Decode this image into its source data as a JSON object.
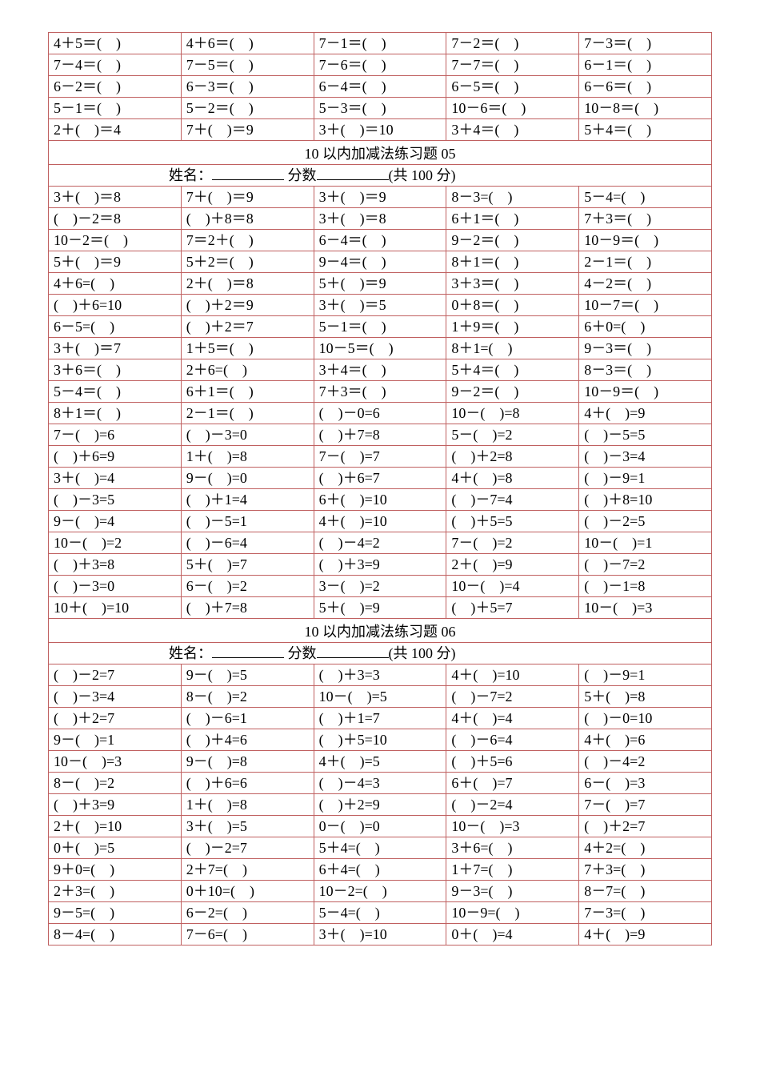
{
  "table": {
    "border_color": "#c06060",
    "columns": 5,
    "column_width_pct": 20
  },
  "block_a": {
    "rows": [
      [
        "4＋5＝(　)",
        "4＋6＝(　)",
        "7－1＝(　)",
        "7－2＝(　)",
        "7－3＝(　)"
      ],
      [
        "7－4＝(　)",
        "7－5＝(　)",
        "7－6＝(　)",
        "7－7＝(　)",
        "6－1＝(　)"
      ],
      [
        "6－2＝(　)",
        "6－3＝(　)",
        "6－4＝(　)",
        "6－5＝(　)",
        "6－6＝(　)"
      ],
      [
        "5－1＝(　)",
        "5－2＝(　)",
        "5－3＝(　)",
        "10－6＝(　)",
        "10－8＝(　)"
      ],
      [
        "2＋(　)＝4",
        "7＋(　)＝9",
        "3＋(　)＝10",
        "3＋4＝(　)",
        "5＋4＝(　)"
      ]
    ]
  },
  "set05": {
    "title": "10 以内加减法练习题 05",
    "label_name": "姓名：",
    "label_score": " 分数",
    "label_total": "(共 100 分)",
    "rows": [
      [
        "3＋(　)＝8",
        "7＋(　)＝9",
        "3＋(　)＝9",
        "8－3=(　)",
        "5－4=(　)"
      ],
      [
        "(　)－2＝8",
        "(　)＋8＝8",
        "3＋(　)＝8",
        "6＋1＝(　)",
        "7＋3＝(　)"
      ],
      [
        "10－2＝(　)",
        "7＝2＋(　)",
        "6－4＝(　)",
        "9－2＝(　)",
        "10－9＝(　)"
      ],
      [
        "5＋(　)＝9",
        "5＋2＝(　)",
        "9－4＝(　)",
        "8＋1＝(　)",
        "2－1＝(　)"
      ],
      [
        "4＋6=(　)",
        "2＋(　)＝8",
        "5＋(　)＝9",
        "3＋3＝(　)",
        "4－2＝(　)"
      ],
      [
        "(　)＋6=10",
        "(　)＋2＝9",
        "3＋(　)＝5",
        "0＋8＝(　)",
        "10－7＝(　)"
      ],
      [
        "6－5=(　)",
        "(　)＋2＝7",
        "5－1＝(　)",
        "1＋9＝(　)",
        "6＋0=(　)"
      ],
      [
        "3＋(　)＝7",
        "1＋5＝(　)",
        "10－5＝(　)",
        "8＋1=(　)",
        "9－3＝(　)"
      ],
      [
        "3＋6＝(　)",
        "2＋6=(　)",
        "3＋4＝(　)",
        "5＋4＝(　)",
        "8－3＝(　)"
      ],
      [
        "5－4＝(　)",
        "6＋1＝(　)",
        "7＋3＝(　)",
        "9－2＝(　)",
        "10－9＝(　)"
      ],
      [
        "8＋1＝(　)",
        "2－1＝(　)",
        "(　)－0=6",
        "10－(　)=8",
        "4＋(　)=9"
      ],
      [
        "7－(　)=6",
        "(　)－3=0",
        "(　)＋7=8",
        "5－(　)=2",
        "(　)－5=5"
      ],
      [
        "(　)＋6=9",
        "1＋(　)=8",
        "7－(　)=7",
        "(　)＋2=8",
        "(　)－3=4"
      ],
      [
        "3＋(　)=4",
        "9－(　)=0",
        "(　)＋6=7",
        "4＋(　)=8",
        "(　)－9=1"
      ],
      [
        "(　)－3=5",
        "(　)＋1=4",
        "6＋(　)=10",
        "(　)－7=4",
        "(　)＋8=10"
      ],
      [
        "9－(　)=4",
        "(　)－5=1",
        "4＋(　)=10",
        "(　)＋5=5",
        "(　)－2=5"
      ],
      [
        "10－(　)=2",
        "(　)－6=4",
        "(　)－4=2",
        "7－(　)=2",
        "10－(　)=1"
      ],
      [
        "(　)＋3=8",
        "5＋(　)=7",
        "(　)＋3=9",
        "2＋(　)=9",
        "(　)－7=2"
      ],
      [
        "(　)－3=0",
        "6－(　)=2",
        "3－(　)=2",
        "10－(　)=4",
        "(　)－1=8"
      ],
      [
        "10＋(　)=10",
        "(　)＋7=8",
        "5＋(　)=9",
        "(　)＋5=7",
        "10－(　)=3"
      ]
    ]
  },
  "set06": {
    "title": "10 以内加减法练习题 06",
    "label_name": "姓名：",
    "label_score": " 分数",
    "label_total": "(共 100 分)",
    "rows": [
      [
        "(　)－2=7",
        "9－(　)=5",
        "(　)＋3=3",
        "4＋(　)=10",
        "(　)－9=1"
      ],
      [
        "(　)－3=4",
        "8－(　)=2",
        "10－(　)=5",
        "(　)－7=2",
        "5＋(　)=8"
      ],
      [
        "(　)＋2=7",
        "(　)－6=1",
        "(　)＋1=7",
        "4＋(　)=4",
        "(　)－0=10"
      ],
      [
        "9－(　)=1",
        "(　)＋4=6",
        "(　)＋5=10",
        "(　)－6=4",
        "4＋(　)=6"
      ],
      [
        "10－(　)=3",
        "9－(　)=8",
        "4＋(　)=5",
        "(　)＋5=6",
        "(　)－4=2"
      ],
      [
        "8－(　)=2",
        "(　)＋6=6",
        "(　)－4=3",
        "6＋(　)=7",
        "6－(　)=3"
      ],
      [
        "(　)＋3=9",
        "1＋(　)=8",
        "(　)＋2=9",
        "(　)－2=4",
        "7－(　)=7"
      ],
      [
        "2＋(　)=10",
        "3＋(　)=5",
        "0－(　)=0",
        "10－(　)=3",
        "(　)＋2=7"
      ],
      [
        "0＋(　)=5",
        "(　)－2=7",
        "5＋4=(　)",
        "3＋6=(　)",
        "4＋2=(　)"
      ],
      [
        "9＋0=(　)",
        "2＋7=(　)",
        "6＋4=(　)",
        "1＋7=(　)",
        "7＋3=(　)"
      ],
      [
        "2＋3=(　)",
        "0＋10=(　)",
        "10－2=(　)",
        "9－3=(　)",
        "8－7=(　)"
      ],
      [
        "9－5=(　)",
        "6－2=(　)",
        "5－4=(　)",
        "10－9=(　)",
        "7－3=(　)"
      ],
      [
        "8－4=(　)",
        "7－6=(　)",
        "3＋(　)=10",
        "0＋(　)=4",
        "4＋(　)=9"
      ]
    ]
  }
}
